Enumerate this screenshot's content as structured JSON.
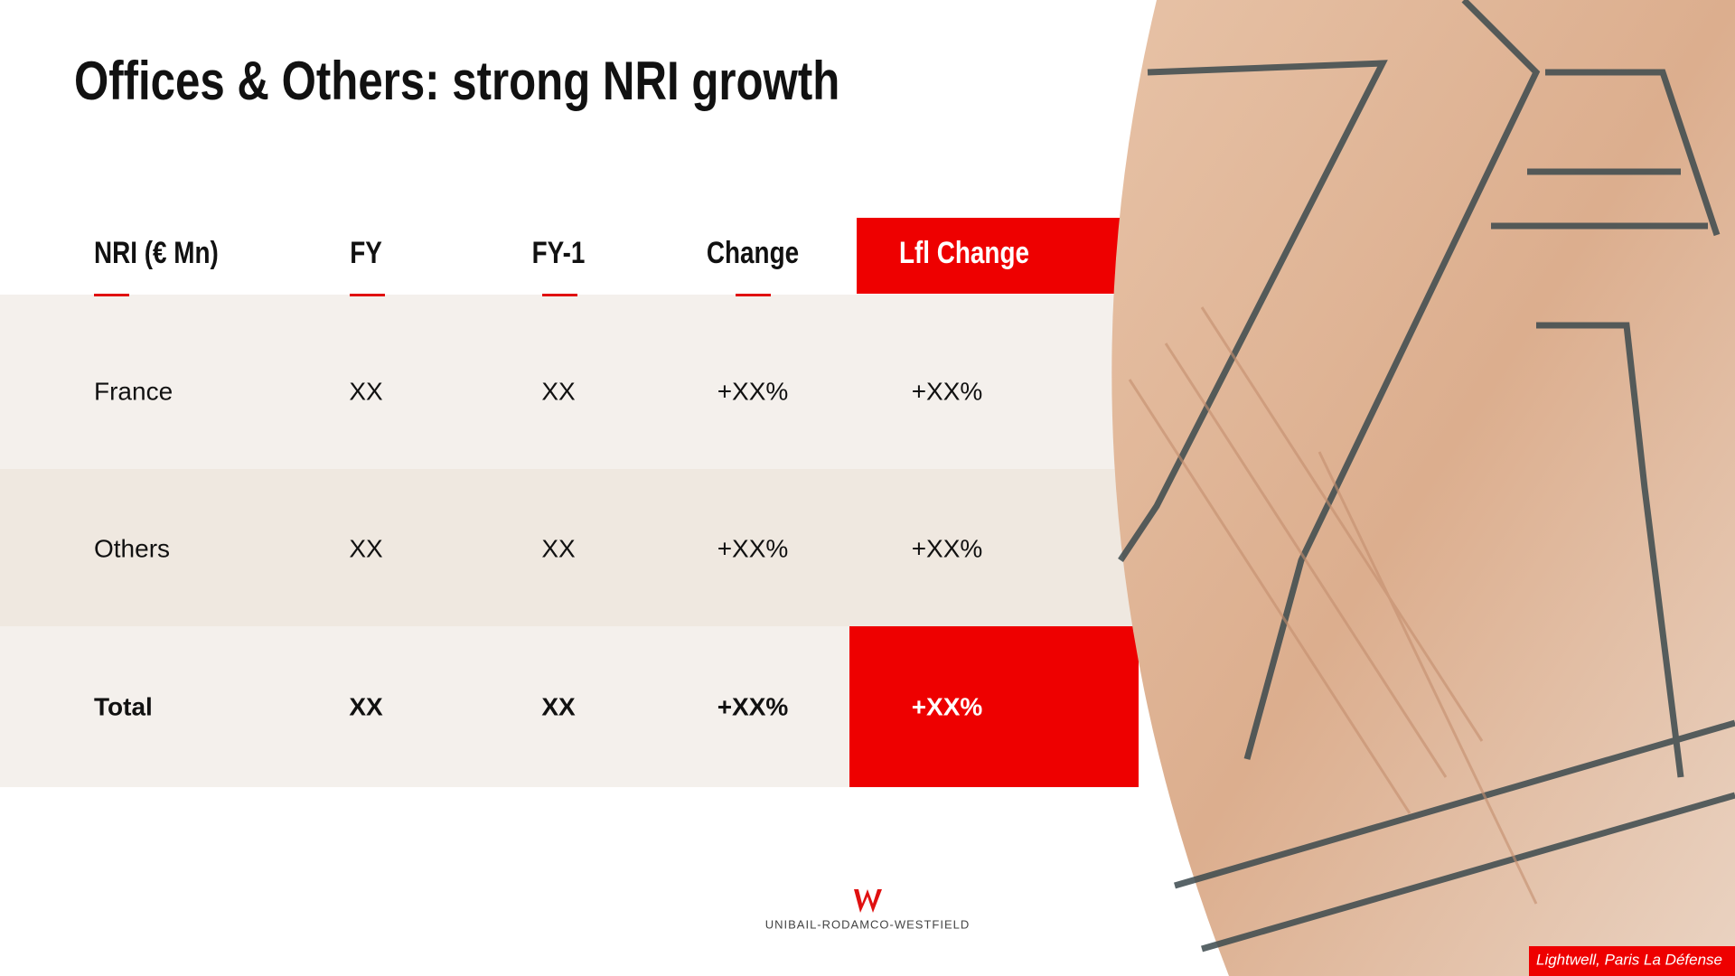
{
  "header": {
    "title": "Offices & Others: strong NRI growth"
  },
  "table": {
    "columns": [
      "NRI (€ Mn)",
      "FY",
      "FY-1",
      "Change",
      "Lfl Change"
    ],
    "rows": [
      [
        "France",
        "XX",
        "XX",
        "+XX%",
        "+XX%"
      ],
      [
        "Others",
        "XX",
        "XX",
        "+XX%",
        "+XX%"
      ],
      [
        "Total",
        "XX",
        "XX",
        "+XX%",
        "+XX%"
      ]
    ]
  },
  "footer": {
    "logo": "UNIBAIL-RODAMCO-WESTFIELD",
    "caption": "Lightwell, Paris La Défense"
  }
}
